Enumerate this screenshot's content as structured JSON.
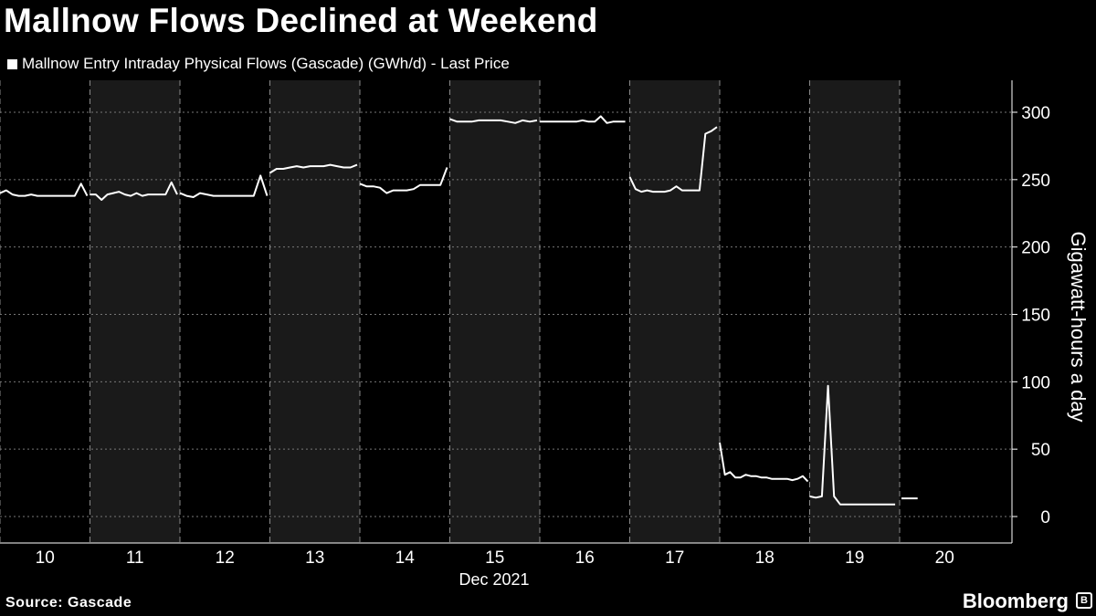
{
  "chart_data": {
    "type": "line",
    "title": "Mallnow Flows Declined at Weekend",
    "legend": [
      "Mallnow Entry Intraday Physical Flows (Gascade) (GWh/d) - Last Price"
    ],
    "legend_placement": "top-left",
    "ylabel": "Gigawatt-hours a day",
    "xlabel": "Dec 2021",
    "ylim": [
      -20,
      325
    ],
    "yticks": [
      0,
      50,
      100,
      150,
      200,
      250,
      300
    ],
    "xlim": [
      10,
      21.25
    ],
    "xticks": [
      "10",
      "11",
      "12",
      "13",
      "14",
      "15",
      "16",
      "17",
      "18",
      "19",
      "20"
    ],
    "shaded_days": [
      11,
      13,
      15,
      17,
      19
    ],
    "grid": true,
    "segments": [
      {
        "start": 10.0,
        "end": 10.97,
        "values": [
          240,
          242,
          239,
          238,
          238,
          239,
          238,
          238,
          238,
          238,
          238,
          238,
          238,
          247,
          238
        ]
      },
      {
        "start": 11.0,
        "end": 11.97,
        "values": [
          239,
          239,
          235,
          239,
          240,
          241,
          239,
          238,
          240,
          238,
          239,
          239,
          239,
          239,
          248,
          239
        ]
      },
      {
        "start": 12.0,
        "end": 12.97,
        "values": [
          240,
          238,
          237,
          240,
          239,
          238,
          238,
          238,
          238,
          238,
          238,
          238,
          253,
          238
        ]
      },
      {
        "start": 13.0,
        "end": 13.97,
        "values": [
          255,
          258,
          258,
          259,
          260,
          259,
          260,
          260,
          260,
          261,
          260,
          259,
          259,
          261
        ]
      },
      {
        "start": 14.0,
        "end": 14.97,
        "values": [
          247,
          245,
          245,
          244,
          240,
          242,
          242,
          242,
          243,
          246,
          246,
          246,
          246,
          259
        ]
      },
      {
        "start": 15.0,
        "end": 15.97,
        "values": [
          295,
          293,
          293,
          293,
          294,
          294,
          294,
          294,
          293,
          292,
          294,
          293,
          294
        ]
      },
      {
        "start": 16.0,
        "end": 16.95,
        "values": [
          293,
          293,
          293,
          293,
          293,
          293,
          293,
          294,
          293,
          293,
          297,
          292,
          293,
          293,
          293
        ]
      },
      {
        "start": 17.0,
        "end": 17.97,
        "values": [
          252,
          243,
          241,
          242,
          241,
          241,
          241,
          242,
          245,
          242,
          242,
          242,
          242,
          284,
          286,
          289
        ]
      },
      {
        "start": 18.0,
        "end": 18.98,
        "values": [
          55,
          31,
          33,
          29,
          29,
          31,
          30,
          30,
          29,
          29,
          28,
          28,
          28,
          28,
          27,
          28,
          30,
          26
        ]
      },
      {
        "start": 19.0,
        "end": 19.95,
        "values": [
          15,
          14,
          15,
          97,
          15,
          9,
          9,
          9,
          9,
          9,
          9,
          9,
          9,
          9,
          9
        ]
      },
      {
        "start": 20.02,
        "end": 20.2,
        "values": [
          13.5,
          13.5
        ]
      }
    ]
  },
  "source": "Source: Gascade",
  "brand": "Bloomberg",
  "colors": {
    "background": "#000000",
    "shade": "#1a1a1a",
    "line": "#ffffff",
    "grid": "#777777"
  }
}
